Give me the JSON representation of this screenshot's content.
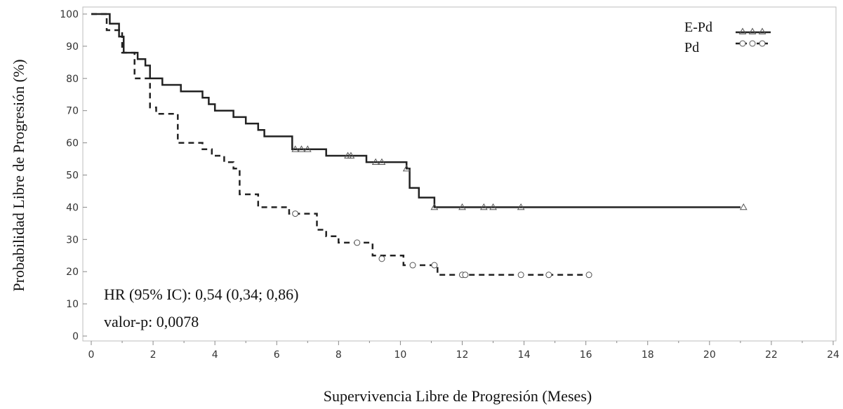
{
  "chart_data": {
    "type": "line",
    "step": true,
    "xlabel": "Supervivencia Libre de Progresión (Meses)",
    "ylabel": "Probabilidad Libre de Progresión (%)",
    "xlim": [
      0,
      24
    ],
    "ylim": [
      0,
      100
    ],
    "xticks": [
      "0",
      "2",
      "4",
      "6",
      "8",
      "10",
      "12",
      "14",
      "16",
      "18",
      "20",
      "22",
      "24"
    ],
    "yticks": [
      "0",
      "10",
      "20",
      "30",
      "40",
      "50",
      "60",
      "70",
      "80",
      "90",
      "100"
    ],
    "legend_position": "top-right",
    "grid": false,
    "annotations": [
      "HR (95% IC): 0,54 (0,34; 0,86)",
      "valor-p: 0,0078"
    ],
    "series": [
      {
        "name": "E-Pd",
        "line_style": "solid",
        "marker": "triangle",
        "color": "#222222",
        "points": [
          [
            0,
            100
          ],
          [
            0.6,
            100
          ],
          [
            0.6,
            97
          ],
          [
            0.9,
            97
          ],
          [
            0.9,
            93
          ],
          [
            1.05,
            93
          ],
          [
            1.05,
            88
          ],
          [
            1.5,
            88
          ],
          [
            1.5,
            86
          ],
          [
            1.75,
            86
          ],
          [
            1.75,
            84
          ],
          [
            1.9,
            84
          ],
          [
            1.9,
            80
          ],
          [
            2.3,
            80
          ],
          [
            2.3,
            78
          ],
          [
            2.9,
            78
          ],
          [
            2.9,
            76
          ],
          [
            3.6,
            76
          ],
          [
            3.6,
            74
          ],
          [
            3.8,
            74
          ],
          [
            3.8,
            72
          ],
          [
            4,
            72
          ],
          [
            4,
            70
          ],
          [
            4.6,
            70
          ],
          [
            4.6,
            68
          ],
          [
            5,
            68
          ],
          [
            5,
            66
          ],
          [
            5.4,
            66
          ],
          [
            5.4,
            64
          ],
          [
            5.6,
            64
          ],
          [
            5.6,
            62
          ],
          [
            6.5,
            62
          ],
          [
            6.5,
            58
          ],
          [
            7.6,
            58
          ],
          [
            7.6,
            56
          ],
          [
            8.9,
            56
          ],
          [
            8.9,
            54
          ],
          [
            10.2,
            54
          ],
          [
            10.2,
            52
          ],
          [
            10.3,
            52
          ],
          [
            10.3,
            46
          ],
          [
            10.6,
            46
          ],
          [
            10.6,
            43
          ],
          [
            11.1,
            43
          ],
          [
            11.1,
            40
          ],
          [
            21,
            40
          ]
        ],
        "censored": [
          [
            6.6,
            58
          ],
          [
            6.8,
            58
          ],
          [
            7,
            58
          ],
          [
            8.3,
            56
          ],
          [
            8.4,
            56
          ],
          [
            9.2,
            54
          ],
          [
            9.4,
            54
          ],
          [
            10.2,
            52
          ],
          [
            11.1,
            40
          ],
          [
            12,
            40
          ],
          [
            12.7,
            40
          ],
          [
            13,
            40
          ],
          [
            13.9,
            40
          ],
          [
            21.1,
            40
          ]
        ]
      },
      {
        "name": "Pd",
        "line_style": "dashed",
        "marker": "circle",
        "color": "#222222",
        "points": [
          [
            0,
            100
          ],
          [
            0.5,
            100
          ],
          [
            0.5,
            95
          ],
          [
            1.0,
            95
          ],
          [
            1.0,
            88
          ],
          [
            1.4,
            88
          ],
          [
            1.4,
            80
          ],
          [
            1.9,
            80
          ],
          [
            1.9,
            71
          ],
          [
            2.1,
            71
          ],
          [
            2.1,
            69
          ],
          [
            2.8,
            69
          ],
          [
            2.8,
            60
          ],
          [
            3.6,
            60
          ],
          [
            3.6,
            58
          ],
          [
            3.9,
            58
          ],
          [
            3.9,
            56
          ],
          [
            4.3,
            56
          ],
          [
            4.3,
            54
          ],
          [
            4.6,
            54
          ],
          [
            4.6,
            52
          ],
          [
            4.8,
            52
          ],
          [
            4.8,
            44
          ],
          [
            5.4,
            44
          ],
          [
            5.4,
            40
          ],
          [
            6.4,
            40
          ],
          [
            6.4,
            38
          ],
          [
            7.3,
            38
          ],
          [
            7.3,
            33
          ],
          [
            7.6,
            33
          ],
          [
            7.6,
            31
          ],
          [
            8.0,
            31
          ],
          [
            8.0,
            29
          ],
          [
            9.1,
            29
          ],
          [
            9.1,
            25
          ],
          [
            10.1,
            25
          ],
          [
            10.1,
            22
          ],
          [
            11.2,
            22
          ],
          [
            11.2,
            19
          ],
          [
            16.2,
            19
          ]
        ],
        "censored": [
          [
            6.6,
            38
          ],
          [
            8.6,
            29
          ],
          [
            9.4,
            24
          ],
          [
            10.4,
            22
          ],
          [
            11.1,
            22
          ],
          [
            12.0,
            19
          ],
          [
            12.1,
            19
          ],
          [
            13.9,
            19
          ],
          [
            14.8,
            19
          ],
          [
            16.1,
            19
          ]
        ]
      }
    ]
  }
}
